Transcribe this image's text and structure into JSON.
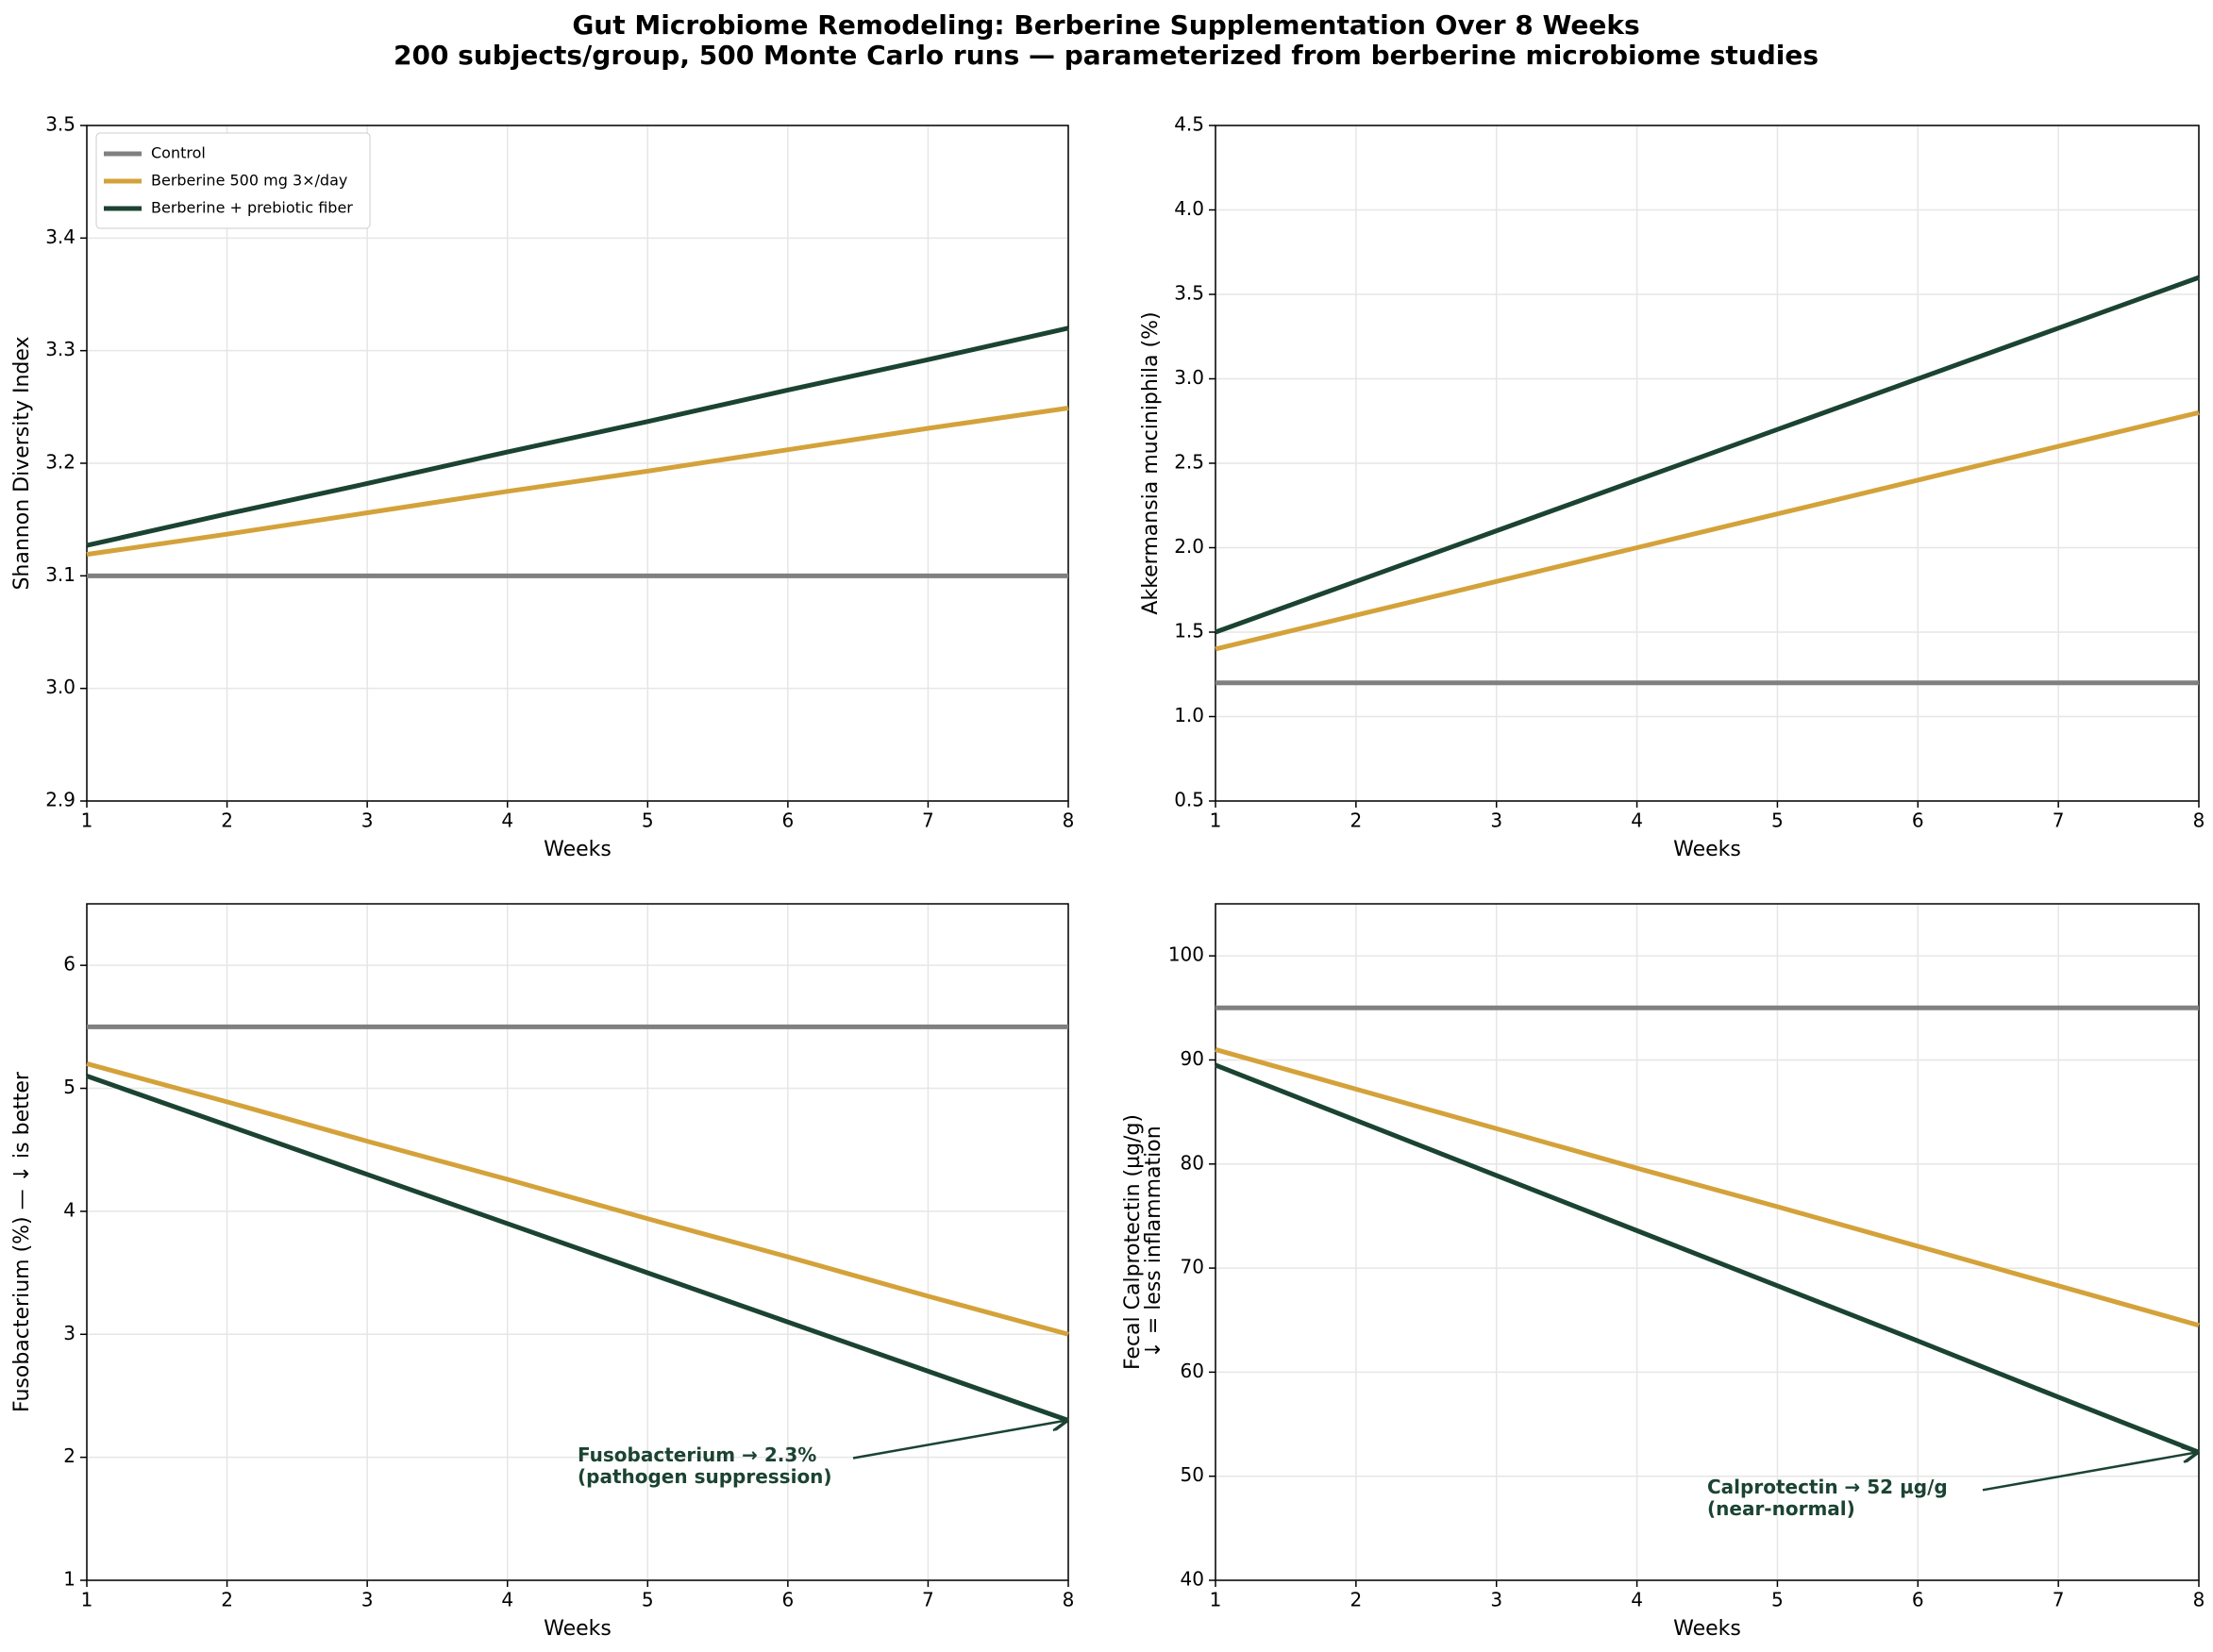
{
  "title": "Gut Microbiome Remodeling: Berberine Supplementation Over 8 Weeks",
  "subtitle": "200 subjects/group, 500 Monte Carlo runs — parameterized from berberine microbiome studies",
  "chart_data": [
    {
      "type": "line",
      "xlabel": "Weeks",
      "ylabel": "Shannon Diversity Index",
      "x": [
        1,
        2,
        3,
        4,
        5,
        6,
        7,
        8
      ],
      "xlim": [
        1,
        8
      ],
      "xticks": [
        1,
        2,
        3,
        4,
        5,
        6,
        7,
        8
      ],
      "ylim": [
        2.9,
        3.5
      ],
      "yticks": [
        2.9,
        {
          "value": 3,
          "label": "3.0"
        },
        3.1,
        3.2,
        3.3,
        3.4,
        3.5
      ],
      "grid": true,
      "legend": "upper left",
      "series": [
        {
          "name": "Control",
          "color": "#808080",
          "values": [
            3.1,
            3.1,
            3.1,
            3.1,
            3.1,
            3.1,
            3.1,
            3.1
          ]
        },
        {
          "name": "Berberine 500 mg 3×/day",
          "color": "#d4a23a",
          "values": [
            3.119,
            3.137,
            3.156,
            3.175,
            3.193,
            3.212,
            3.231,
            3.249
          ]
        },
        {
          "name": "Berberine + prebiotic fiber",
          "color": "#1b4332",
          "values": [
            3.127,
            3.155,
            3.182,
            3.21,
            3.237,
            3.265,
            3.292,
            3.32
          ]
        }
      ]
    },
    {
      "type": "line",
      "xlabel": "Weeks",
      "ylabel": "Akkermansia muciniphila (%)",
      "x": [
        1,
        2,
        3,
        4,
        5,
        6,
        7,
        8
      ],
      "xlim": [
        1,
        8
      ],
      "xticks": [
        1,
        2,
        3,
        4,
        5,
        6,
        7,
        8
      ],
      "ylim": [
        0.5,
        4.5
      ],
      "yticks": [
        0.5,
        {
          "value": 1,
          "label": "1.0"
        },
        1.5,
        {
          "value": 2,
          "label": "2.0"
        },
        2.5,
        {
          "value": 3,
          "label": "3.0"
        },
        3.5,
        {
          "value": 4,
          "label": "4.0"
        },
        4.5
      ],
      "grid": true,
      "series": [
        {
          "color": "#808080",
          "values": [
            1.2,
            1.2,
            1.2,
            1.2,
            1.2,
            1.2,
            1.2,
            1.2
          ]
        },
        {
          "color": "#d4a23a",
          "values": [
            1.4,
            1.6,
            1.8,
            2.0,
            2.2,
            2.4,
            2.6,
            2.8
          ]
        },
        {
          "color": "#1b4332",
          "values": [
            1.5,
            1.8,
            2.1,
            2.4,
            2.7,
            3.0,
            3.3,
            3.6
          ]
        }
      ]
    },
    {
      "type": "line",
      "xlabel": "Weeks",
      "ylabel": "Fusobacterium (%) — ↓ is better",
      "x": [
        1,
        2,
        3,
        4,
        5,
        6,
        7,
        8
      ],
      "xlim": [
        1,
        8
      ],
      "xticks": [
        1,
        2,
        3,
        4,
        5,
        6,
        7,
        8
      ],
      "ylim": [
        1,
        6.5
      ],
      "yticks": [
        1,
        2,
        3,
        4,
        5,
        6
      ],
      "grid": true,
      "series": [
        {
          "color": "#808080",
          "values": [
            5.5,
            5.5,
            5.5,
            5.5,
            5.5,
            5.5,
            5.5,
            5.5
          ]
        },
        {
          "color": "#d4a23a",
          "values": [
            5.2,
            4.89,
            4.57,
            4.26,
            3.94,
            3.63,
            3.31,
            3.0
          ]
        },
        {
          "color": "#1b4332",
          "values": [
            5.1,
            4.7,
            4.3,
            3.9,
            3.5,
            3.1,
            2.7,
            2.3
          ]
        }
      ],
      "annotation": [
        "Fusobacterium → 2.3%",
        "(pathogen suppression)"
      ]
    },
    {
      "type": "line",
      "xlabel": "Weeks",
      "ylabel": [
        "Fecal Calprotectin (µg/g)",
        "↓ = less inflammation"
      ],
      "x": [
        1,
        2,
        3,
        4,
        5,
        6,
        7,
        8
      ],
      "xlim": [
        1,
        8
      ],
      "xticks": [
        1,
        2,
        3,
        4,
        5,
        6,
        7,
        8
      ],
      "ylim": [
        40,
        105
      ],
      "yticks": [
        40,
        50,
        60,
        70,
        80,
        90,
        100
      ],
      "grid": true,
      "series": [
        {
          "color": "#808080",
          "values": [
            95,
            95,
            95,
            95,
            95,
            95,
            95,
            95
          ]
        },
        {
          "color": "#d4a23a",
          "values": [
            91,
            87.2,
            83.4,
            79.6,
            75.9,
            72.1,
            68.3,
            64.5
          ]
        },
        {
          "color": "#1b4332",
          "values": [
            89.5,
            84.2,
            78.9,
            73.6,
            68.3,
            63.0,
            57.6,
            52.3
          ]
        }
      ],
      "annotation": [
        "Calprotectin → 52 µg/g",
        "(near-normal)"
      ]
    }
  ]
}
